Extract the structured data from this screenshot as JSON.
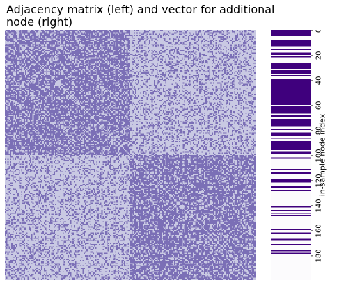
{
  "chart_data": [
    {
      "type": "heatmap",
      "title": "Adjacency matrix (left) and vector for additional node (right)",
      "rows": 200,
      "cols": 200,
      "values": [
        0,
        1
      ],
      "blocks": [
        {
          "rows": [
            0,
            99
          ],
          "cols": [
            0,
            99
          ],
          "edge_probability": 0.7
        },
        {
          "rows": [
            0,
            99
          ],
          "cols": [
            100,
            199
          ],
          "edge_probability": 0.3
        },
        {
          "rows": [
            100,
            199
          ],
          "cols": [
            0,
            99
          ],
          "edge_probability": 0.3
        },
        {
          "rows": [
            100,
            199
          ],
          "cols": [
            100,
            199
          ],
          "edge_probability": 0.7
        }
      ],
      "colors": {
        "0": "#c9c9e3",
        "1": "#7b6fb6"
      },
      "grid": false
    },
    {
      "type": "heatmap",
      "rows": 200,
      "cols": 1,
      "ylabel": "in-sample node index",
      "yticks": [
        0,
        20,
        40,
        60,
        80,
        100,
        120,
        140,
        160,
        180
      ],
      "ylim": [
        0,
        199
      ],
      "values": [
        0,
        1
      ],
      "ones_ranges": [
        [
          0,
          4
        ],
        [
          8,
          12
        ],
        [
          15,
          15
        ],
        [
          18,
          19
        ],
        [
          21,
          21
        ],
        [
          26,
          30
        ],
        [
          32,
          34
        ],
        [
          36,
          36
        ],
        [
          39,
          59
        ],
        [
          61,
          66
        ],
        [
          68,
          69
        ],
        [
          71,
          73
        ],
        [
          74,
          76
        ],
        [
          79,
          79
        ],
        [
          82,
          84
        ],
        [
          86,
          86
        ],
        [
          89,
          95
        ],
        [
          97,
          97
        ],
        [
          98,
          98
        ],
        [
          102,
          102
        ],
        [
          111,
          111
        ],
        [
          114,
          114
        ],
        [
          119,
          119
        ],
        [
          120,
          121
        ],
        [
          125,
          125
        ],
        [
          128,
          128
        ],
        [
          141,
          141
        ],
        [
          144,
          144
        ],
        [
          146,
          146
        ],
        [
          148,
          148
        ],
        [
          159,
          159
        ],
        [
          162,
          162
        ],
        [
          167,
          167
        ],
        [
          171,
          171
        ],
        [
          176,
          176
        ],
        [
          178,
          178
        ]
      ],
      "colors": {
        "0": "#fcfbfd",
        "1": "#3f007d"
      },
      "grid": false
    }
  ]
}
